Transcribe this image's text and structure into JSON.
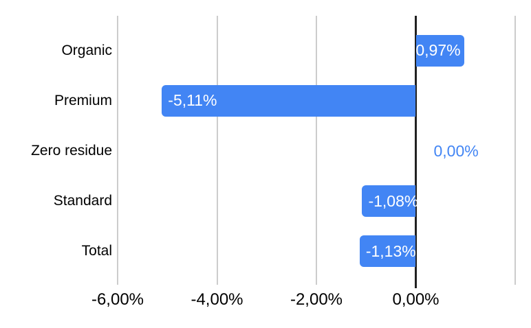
{
  "chart_data": {
    "type": "bar",
    "orientation": "horizontal",
    "title": "",
    "xlabel": "",
    "ylabel": "",
    "xlim": [
      -6,
      2
    ],
    "grid": true,
    "categories": [
      "Organic",
      "Premium",
      "Zero residue",
      "Standard",
      "Total"
    ],
    "values": [
      0.97,
      -5.11,
      0,
      -1.08,
      -1.13
    ],
    "value_labels": [
      "0,97%",
      "-5,11%",
      "0,00%",
      "-1,08%",
      "-1,13%"
    ],
    "x_ticks": [
      {
        "value": -6,
        "label": "-6,00%"
      },
      {
        "value": -4,
        "label": "-4,00%"
      },
      {
        "value": -2,
        "label": "-2,00%"
      },
      {
        "value": 0,
        "label": "0,00%"
      },
      {
        "value": 2,
        "label": ""
      }
    ],
    "colors": {
      "bar": "#4285F4",
      "bar_label_text": "#ffffff",
      "outside_label_text": "#4285F4",
      "zero_line": "#212121",
      "gridline": "#cccccc",
      "axis_text": "#000000",
      "category_text": "#000000",
      "background": "#ffffff"
    }
  }
}
